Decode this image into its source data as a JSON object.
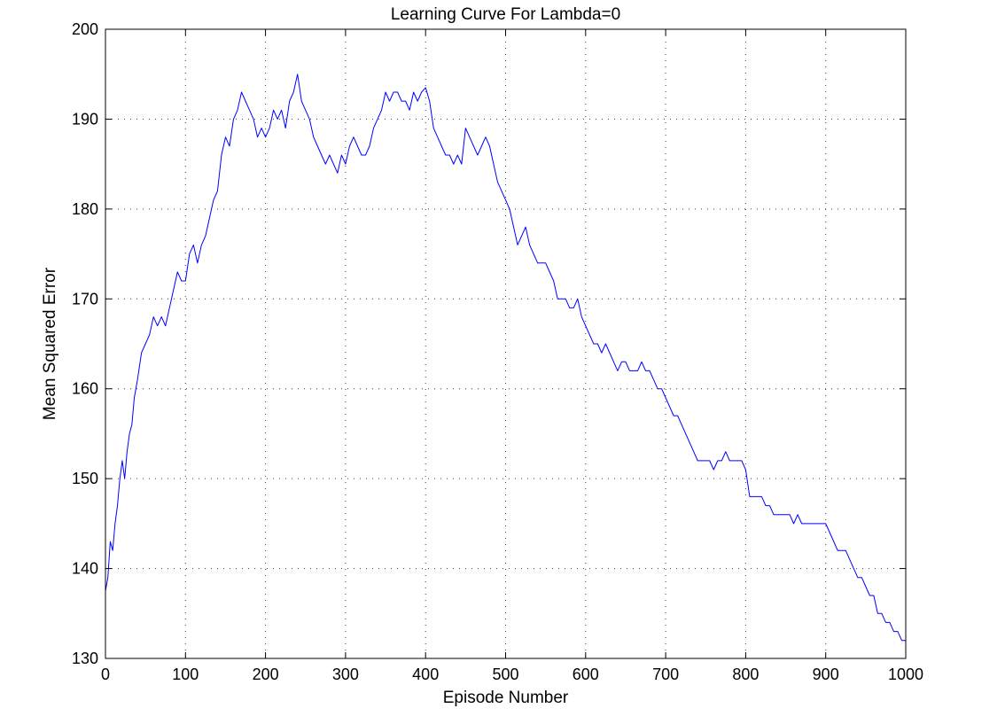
{
  "chart_data": {
    "type": "line",
    "title": "Learning Curve For Lambda=0",
    "xlabel": "Episode Number",
    "ylabel": "Mean Squared Error",
    "xlim": [
      0,
      1000
    ],
    "ylim": [
      130,
      200
    ],
    "xticks": [
      0,
      100,
      200,
      300,
      400,
      500,
      600,
      700,
      800,
      900,
      1000
    ],
    "yticks": [
      130,
      140,
      150,
      160,
      170,
      180,
      190,
      200
    ],
    "xtick_labels": [
      "0",
      "100",
      "200",
      "300",
      "400",
      "500",
      "600",
      "700",
      "800",
      "900",
      "1000"
    ],
    "ytick_labels": [
      "130",
      "140",
      "150",
      "160",
      "170",
      "180",
      "190",
      "200"
    ],
    "grid": true,
    "line_color": "#0000ff",
    "series": [
      {
        "x": [
          0,
          3,
          6,
          9,
          12,
          15,
          18,
          21,
          24,
          27,
          30,
          33,
          36,
          40,
          45,
          50,
          55,
          60,
          65,
          70,
          75,
          80,
          85,
          90,
          95,
          100,
          105,
          110,
          115,
          120,
          125,
          130,
          135,
          140,
          145,
          150,
          155,
          160,
          165,
          170,
          175,
          180,
          185,
          190,
          195,
          200,
          205,
          210,
          215,
          220,
          225,
          230,
          235,
          240,
          245,
          250,
          255,
          260,
          265,
          270,
          275,
          280,
          285,
          290,
          295,
          300,
          305,
          310,
          315,
          320,
          325,
          330,
          335,
          340,
          345,
          350,
          355,
          360,
          365,
          370,
          375,
          380,
          385,
          390,
          395,
          400,
          405,
          410,
          415,
          420,
          425,
          430,
          435,
          440,
          445,
          450,
          455,
          460,
          465,
          470,
          475,
          480,
          485,
          490,
          495,
          500,
          505,
          510,
          515,
          520,
          525,
          530,
          535,
          540,
          545,
          550,
          555,
          560,
          565,
          570,
          575,
          580,
          585,
          590,
          595,
          600,
          605,
          610,
          615,
          620,
          625,
          630,
          635,
          640,
          645,
          650,
          655,
          660,
          665,
          670,
          675,
          680,
          685,
          690,
          695,
          700,
          705,
          710,
          715,
          720,
          725,
          730,
          735,
          740,
          745,
          750,
          755,
          760,
          765,
          770,
          775,
          780,
          785,
          790,
          795,
          800,
          805,
          810,
          815,
          820,
          825,
          830,
          835,
          840,
          845,
          850,
          855,
          860,
          865,
          870,
          875,
          880,
          885,
          890,
          895,
          900,
          905,
          910,
          915,
          920,
          925,
          930,
          935,
          940,
          945,
          950,
          955,
          960,
          965,
          970,
          975,
          980,
          985,
          990,
          995,
          1000
        ],
        "y": [
          137.5,
          139,
          143,
          142,
          145,
          147,
          150,
          152,
          150,
          153,
          155,
          156,
          159,
          161,
          164,
          165,
          166,
          168,
          167,
          168,
          167,
          169,
          171,
          173,
          172,
          172,
          175,
          176,
          174,
          176,
          177,
          179,
          181,
          182,
          186,
          188,
          187,
          190,
          191,
          193,
          192,
          191,
          190,
          188,
          189,
          188,
          189,
          191,
          190,
          191,
          189,
          192,
          193,
          195,
          192,
          191,
          190,
          188,
          187,
          186,
          185,
          186,
          185,
          184,
          186,
          185,
          187,
          188,
          187,
          186,
          186,
          187,
          189,
          190,
          191,
          193,
          192,
          193,
          193,
          192,
          192,
          191,
          193,
          192,
          193,
          193.5,
          192,
          189,
          188,
          187,
          186,
          186,
          185,
          186,
          185,
          189,
          188,
          187,
          186,
          187,
          188,
          187,
          185,
          183,
          182,
          181,
          180,
          178,
          176,
          177,
          178,
          176,
          175,
          174,
          174,
          174,
          173,
          172,
          170,
          170,
          170,
          169,
          169,
          170,
          168,
          167,
          166,
          165,
          165,
          164,
          165,
          164,
          163,
          162,
          163,
          163,
          162,
          162,
          162,
          163,
          162,
          162,
          161,
          160,
          160,
          159,
          158,
          157,
          157,
          156,
          155,
          154,
          153,
          152,
          152,
          152,
          152,
          151,
          152,
          152,
          153,
          152,
          152,
          152,
          152,
          151,
          148,
          148,
          148,
          148,
          147,
          147,
          146,
          146,
          146,
          146,
          146,
          145,
          146,
          145,
          145,
          145,
          145,
          145,
          145,
          145,
          144,
          143,
          142,
          142,
          142,
          141,
          140,
          139,
          139,
          138,
          137,
          137,
          135,
          135,
          134,
          134,
          133,
          133,
          132,
          132
        ]
      }
    ]
  }
}
